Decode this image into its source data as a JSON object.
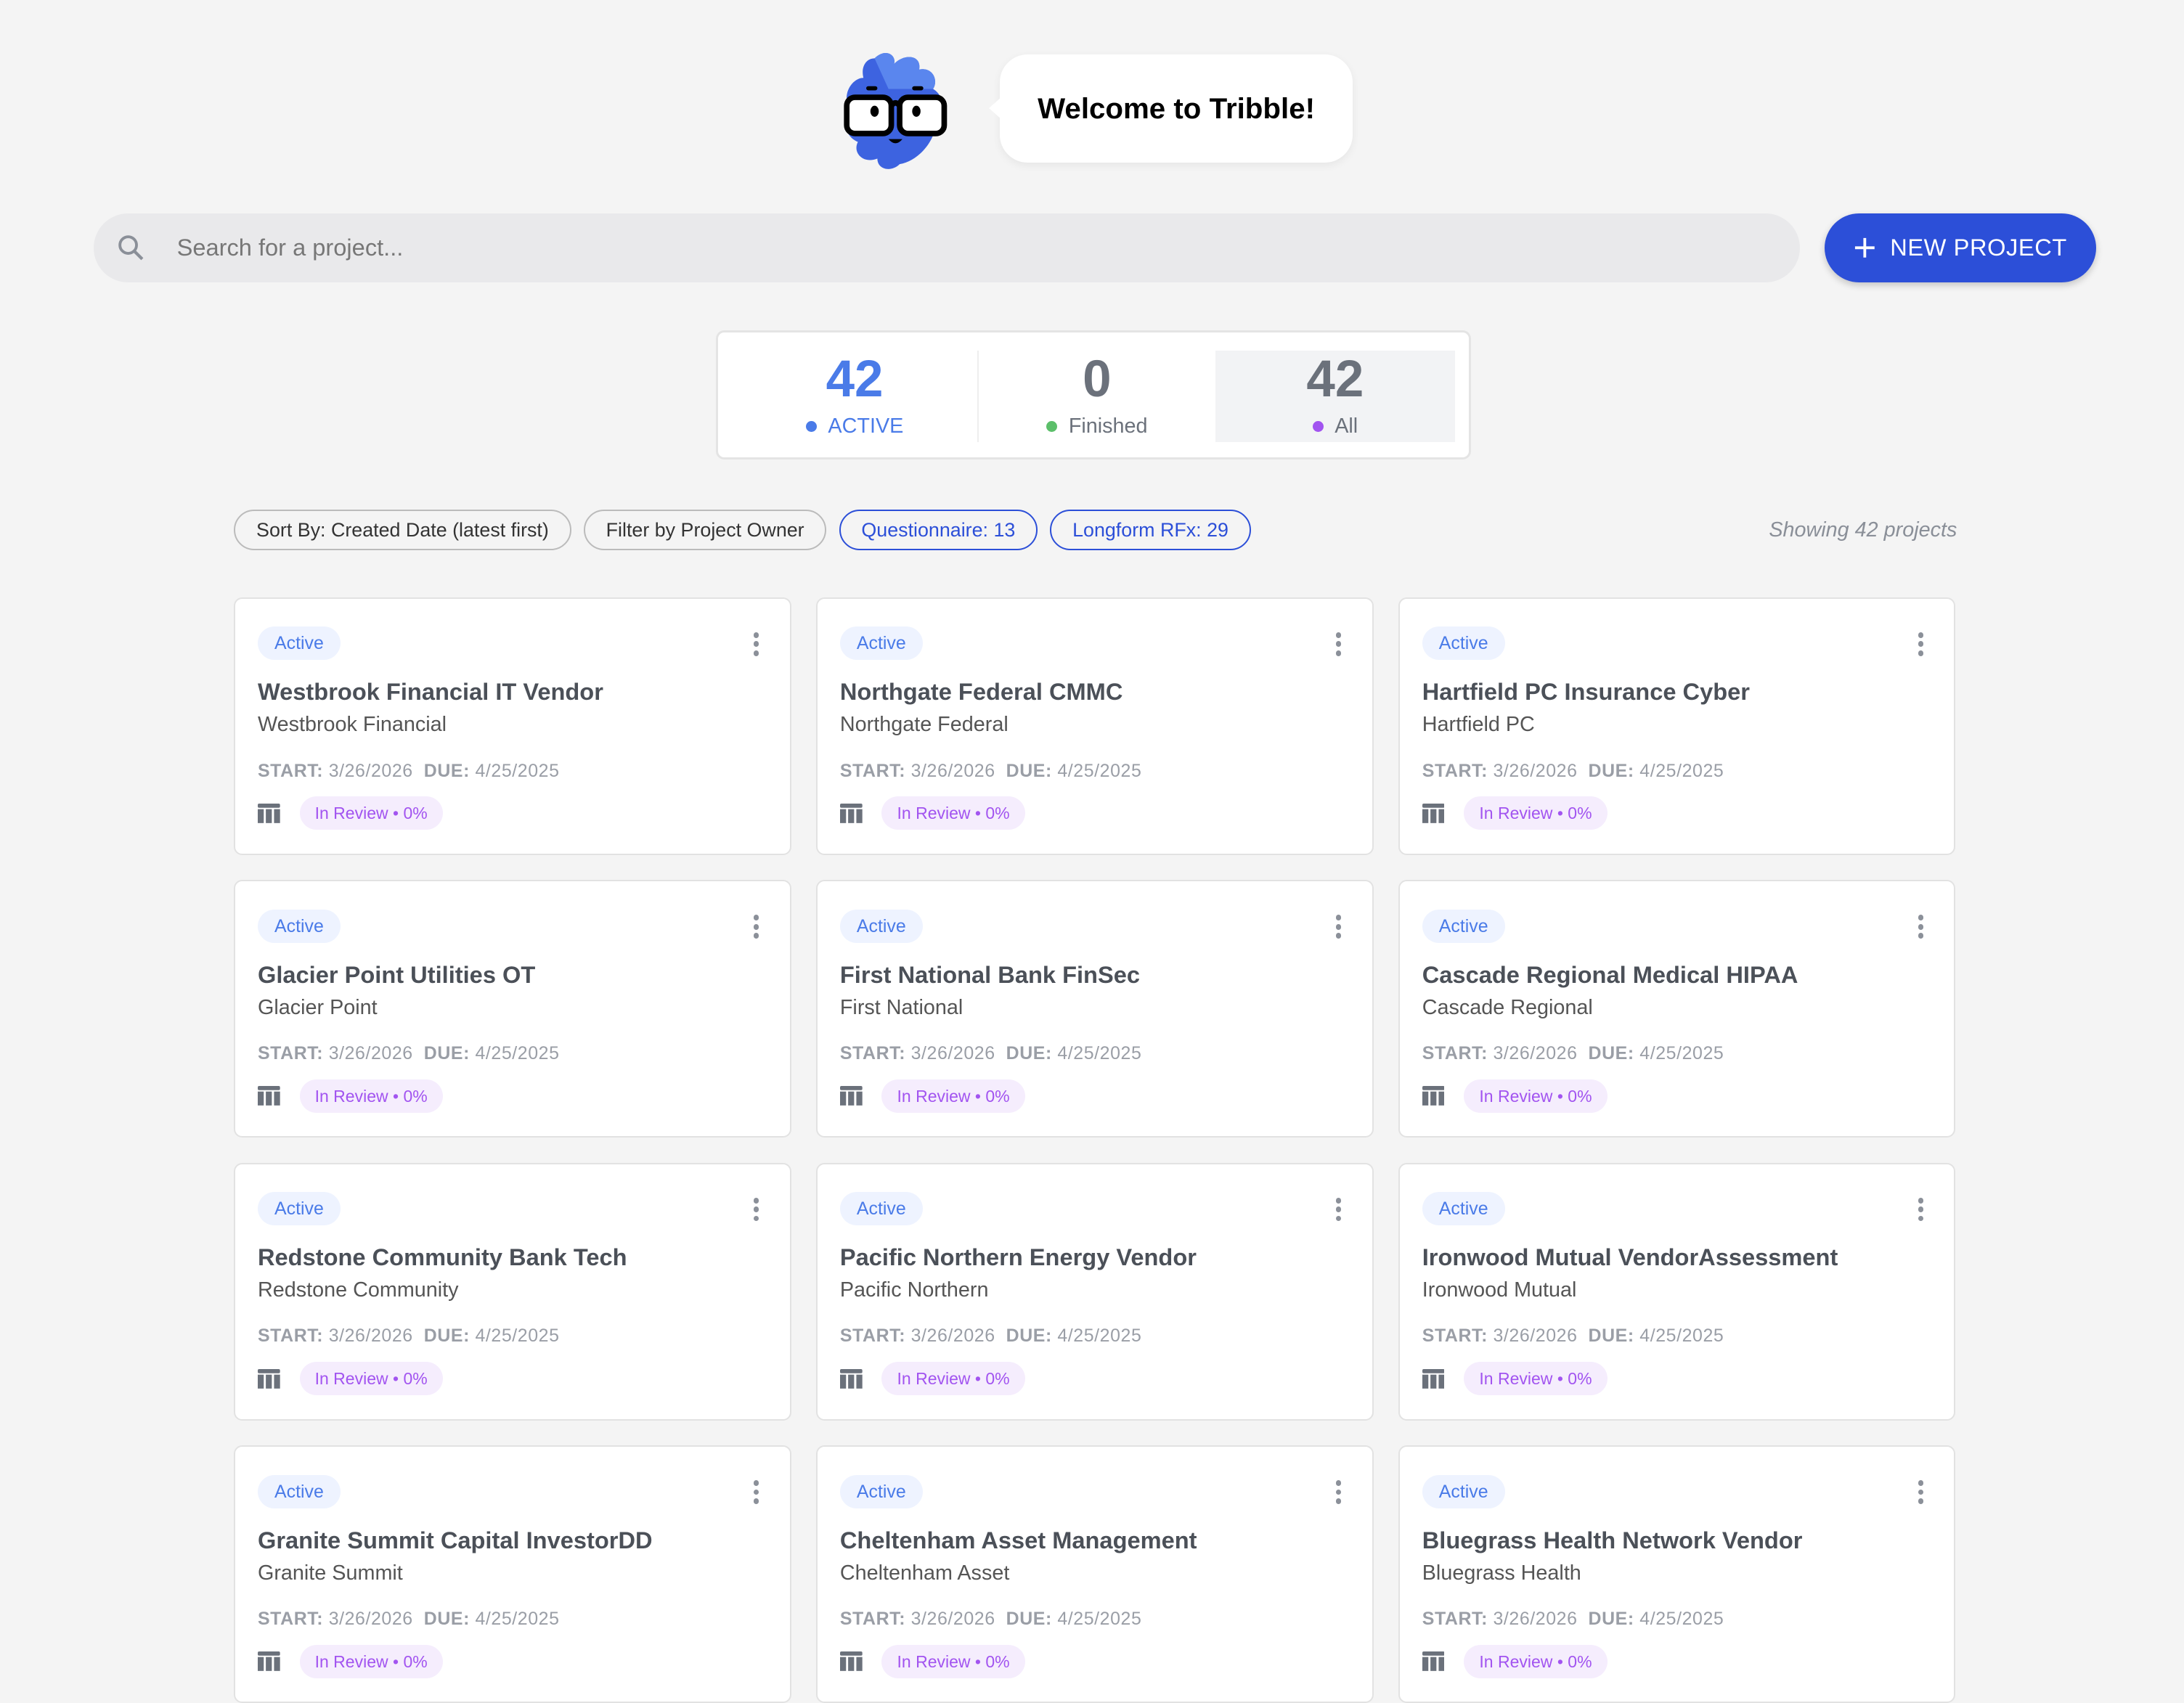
{
  "header": {
    "welcome": "Welcome to Tribble!"
  },
  "search": {
    "placeholder": "Search for a project...",
    "icon": "search-icon"
  },
  "new_project": {
    "label": "NEW PROJECT",
    "icon": "plus-icon"
  },
  "stats": [
    {
      "value": "42",
      "label": "ACTIVE",
      "color": "#4a7be8",
      "dot": "#4a7be8"
    },
    {
      "value": "0",
      "label": "Finished",
      "color": "#6b717b",
      "dot": "#5cbf6a"
    },
    {
      "value": "42",
      "label": "All",
      "color": "#6b717b",
      "dot": "#a254f0"
    }
  ],
  "filters": {
    "sort": "Sort By: Created Date (latest first)",
    "owner": "Filter by Project Owner",
    "questionnaire": "Questionnaire: 13",
    "longform": "Longform RFx: 29"
  },
  "showing": "Showing 42 projects",
  "card_labels": {
    "start": "START:",
    "due": "DUE:"
  },
  "projects": [
    {
      "status": "Active",
      "title": "Westbrook Financial IT Vendor",
      "client": "Westbrook Financial",
      "start": "3/26/2026",
      "due": "4/25/2025",
      "review": "In Review • 0%"
    },
    {
      "status": "Active",
      "title": "Northgate Federal CMMC",
      "client": "Northgate Federal",
      "start": "3/26/2026",
      "due": "4/25/2025",
      "review": "In Review • 0%"
    },
    {
      "status": "Active",
      "title": "Hartfield PC Insurance Cyber",
      "client": "Hartfield PC",
      "start": "3/26/2026",
      "due": "4/25/2025",
      "review": "In Review • 0%"
    },
    {
      "status": "Active",
      "title": "Glacier Point Utilities OT",
      "client": "Glacier Point",
      "start": "3/26/2026",
      "due": "4/25/2025",
      "review": "In Review • 0%"
    },
    {
      "status": "Active",
      "title": "First National Bank FinSec",
      "client": "First National",
      "start": "3/26/2026",
      "due": "4/25/2025",
      "review": "In Review • 0%"
    },
    {
      "status": "Active",
      "title": "Cascade Regional Medical HIPAA",
      "client": "Cascade Regional",
      "start": "3/26/2026",
      "due": "4/25/2025",
      "review": "In Review • 0%"
    },
    {
      "status": "Active",
      "title": "Redstone Community Bank Tech",
      "client": "Redstone Community",
      "start": "3/26/2026",
      "due": "4/25/2025",
      "review": "In Review • 0%"
    },
    {
      "status": "Active",
      "title": "Pacific Northern Energy Vendor",
      "client": "Pacific Northern",
      "start": "3/26/2026",
      "due": "4/25/2025",
      "review": "In Review • 0%"
    },
    {
      "status": "Active",
      "title": "Ironwood Mutual VendorAssessment",
      "client": "Ironwood Mutual",
      "start": "3/26/2026",
      "due": "4/25/2025",
      "review": "In Review • 0%"
    },
    {
      "status": "Active",
      "title": "Granite Summit Capital InvestorDD",
      "client": "Granite Summit",
      "start": "3/26/2026",
      "due": "4/25/2025",
      "review": "In Review • 0%"
    },
    {
      "status": "Active",
      "title": "Cheltenham Asset Management",
      "client": "Cheltenham Asset",
      "start": "3/26/2026",
      "due": "4/25/2025",
      "review": "In Review • 0%"
    },
    {
      "status": "Active",
      "title": "Bluegrass Health Network Vendor",
      "client": "Bluegrass Health",
      "start": "3/26/2026",
      "due": "4/25/2025",
      "review": "In Review • 0%"
    }
  ]
}
